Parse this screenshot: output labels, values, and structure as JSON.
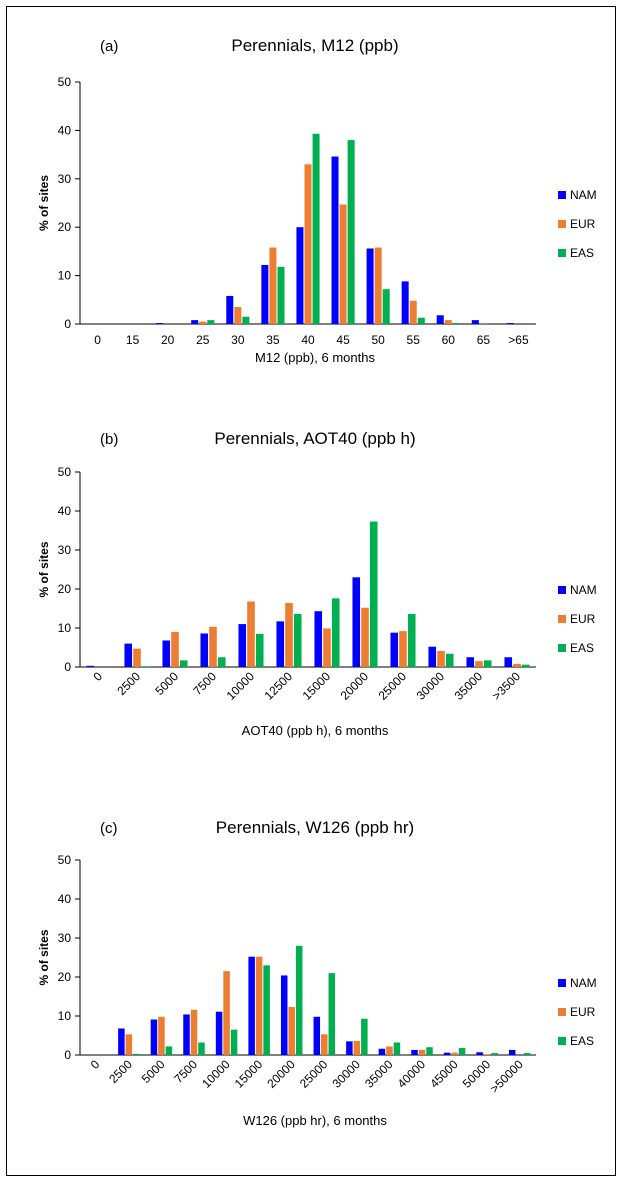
{
  "colors": {
    "NAM": "#0000ff",
    "EUR": "#ed7d31",
    "EAS": "#00b050",
    "axis": "#000000"
  },
  "chart_data": [
    {
      "type": "bar",
      "panel_label": "(a)",
      "title": "Perennials, M12 (ppb)",
      "xlabel": "M12 (ppb), 6 months",
      "ylabel": "% of sites",
      "ylim": [
        0,
        50
      ],
      "yticks": [
        "0",
        "10",
        "20",
        "30",
        "40",
        "50"
      ],
      "legend_placement": "right",
      "grid": false,
      "categories": [
        "0",
        "15",
        "20",
        "25",
        "30",
        "35",
        "40",
        "45",
        "50",
        "55",
        "60",
        "65",
        ">65"
      ],
      "series": [
        {
          "name": "NAM",
          "values": [
            0,
            0,
            0.2,
            0.8,
            5.8,
            12.2,
            20,
            34.6,
            15.6,
            8.8,
            1.8,
            0.8,
            0.2
          ]
        },
        {
          "name": "EUR",
          "values": [
            0,
            0,
            0,
            0.5,
            3.5,
            15.8,
            33,
            24.7,
            15.8,
            4.8,
            0.8,
            0.2,
            0
          ]
        },
        {
          "name": "EAS",
          "values": [
            0,
            0,
            0,
            0.8,
            1.5,
            11.8,
            39.3,
            38,
            7.2,
            1.3,
            0.2,
            0,
            0
          ]
        }
      ]
    },
    {
      "type": "bar",
      "panel_label": "(b)",
      "title": "Perennials, AOT40 (ppb h)",
      "xlabel": "AOT40 (ppb h), 6 months",
      "ylabel": "% of sites",
      "ylim": [
        0,
        50
      ],
      "yticks": [
        "0",
        "10",
        "20",
        "30",
        "40",
        "50"
      ],
      "legend_placement": "right",
      "grid": false,
      "categories": [
        "0",
        "2500",
        "5000",
        "7500",
        "10000",
        "12500",
        "15000",
        "20000",
        "25000",
        "30000",
        "35000",
        ">3500"
      ],
      "series": [
        {
          "name": "NAM",
          "values": [
            0.3,
            6,
            6.8,
            8.6,
            11,
            11.7,
            14.3,
            23,
            8.8,
            5.2,
            2.5,
            2.5
          ]
        },
        {
          "name": "EUR",
          "values": [
            0,
            4.7,
            9,
            10.3,
            16.8,
            16.4,
            9.9,
            15.2,
            9.2,
            4.1,
            1.5,
            0.8
          ]
        },
        {
          "name": "EAS",
          "values": [
            0,
            0.2,
            1.7,
            2.5,
            8.5,
            13.6,
            17.6,
            37.3,
            13.6,
            3.4,
            1.7,
            0.6
          ]
        }
      ]
    },
    {
      "type": "bar",
      "panel_label": "(c)",
      "title": "Perennials, W126 (ppb hr)",
      "xlabel": "W126 (ppb hr), 6 months",
      "ylabel": "% of sites",
      "ylim": [
        0,
        50
      ],
      "yticks": [
        "0",
        "10",
        "20",
        "30",
        "40",
        "50"
      ],
      "legend_placement": "right",
      "grid": false,
      "categories": [
        "0",
        "2500",
        "5000",
        "7500",
        "10000",
        "15000",
        "20000",
        "25000",
        "30000",
        "35000",
        "40000",
        "45000",
        "50000",
        ">50000"
      ],
      "series": [
        {
          "name": "NAM",
          "values": [
            0,
            6.8,
            9.1,
            10.4,
            11.1,
            25.2,
            20.4,
            9.8,
            3.5,
            1.6,
            1.3,
            0.6,
            0.7,
            1.3
          ]
        },
        {
          "name": "EUR",
          "values": [
            0,
            5.3,
            9.8,
            11.6,
            21.5,
            25.2,
            12.3,
            5.3,
            3.6,
            2.2,
            1.3,
            0.6,
            0.2,
            0
          ]
        },
        {
          "name": "EAS",
          "values": [
            0,
            0.3,
            2.2,
            3.2,
            6.5,
            23,
            28,
            21,
            9.3,
            3.2,
            2,
            1.8,
            0.5,
            0.5
          ]
        }
      ]
    }
  ]
}
